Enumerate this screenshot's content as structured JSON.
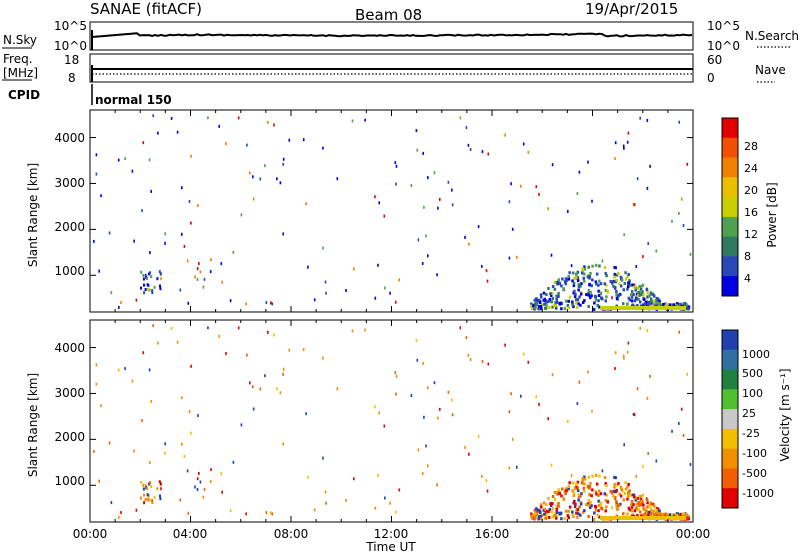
{
  "header": {
    "station": "SANAE (fitACF)",
    "beam": "Beam 08",
    "date": "19/Apr/2015"
  },
  "panels": {
    "nsky": {
      "left_label": "N.Sky",
      "left_ticks": [
        "10^5",
        "10^0"
      ],
      "right_ticks": [
        "10^5",
        "10^0"
      ],
      "right_label": "N.Search"
    },
    "freq": {
      "left_label_1": "Freq.",
      "left_label_2": "[MHz]",
      "left_ticks": [
        "18",
        "8"
      ],
      "right_ticks": [
        "60",
        "0"
      ],
      "right_label": "Nave"
    },
    "cpid": {
      "label": "CPID",
      "mode": "normal 150"
    }
  },
  "colorbars": {
    "power": {
      "label": "Power [dB]",
      "ticks": [
        "28",
        "24",
        "20",
        "16",
        "12",
        "8",
        "4"
      ],
      "colors": [
        "#e00000",
        "#f05000",
        "#f08000",
        "#e8c000",
        "#c8d000",
        "#50a050",
        "#307860",
        "#2848b8",
        "#0000e0"
      ]
    },
    "velocity": {
      "label": "Velocity [m s⁻¹]",
      "ticks": [
        "1000",
        "500",
        "100",
        "25",
        "-25",
        "-100",
        "-500",
        "-1000"
      ],
      "colors": [
        "#2040b0",
        "#3070a0",
        "#208040",
        "#50c030",
        "#c8c8c8",
        "#f0c000",
        "#f09000",
        "#f06000",
        "#e00000"
      ]
    }
  },
  "chart_data": [
    {
      "type": "heatmap",
      "title": "Power",
      "ylabel": "Slant Range [km]",
      "xlabel": "",
      "y_ticks": [
        "1000",
        "2000",
        "3000",
        "4000"
      ],
      "ylim": [
        200,
        4600
      ],
      "xlim": [
        "00:00",
        "24:00"
      ],
      "x_ticks": [
        "00:00",
        "04:00",
        "08:00",
        "12:00",
        "16:00",
        "20:00",
        "00:00"
      ],
      "colorbar_range_dB": [
        0,
        32
      ]
    },
    {
      "type": "heatmap",
      "title": "Velocity",
      "ylabel": "Slant Range [km]",
      "xlabel": "Time UT",
      "y_ticks": [
        "1000",
        "2000",
        "3000",
        "4000"
      ],
      "ylim": [
        200,
        4600
      ],
      "xlim": [
        "00:00",
        "24:00"
      ],
      "x_ticks": [
        "00:00",
        "04:00",
        "08:00",
        "12:00",
        "16:00",
        "20:00",
        "00:00"
      ],
      "colorbar_range_ms": [
        -1000,
        1000
      ]
    }
  ]
}
